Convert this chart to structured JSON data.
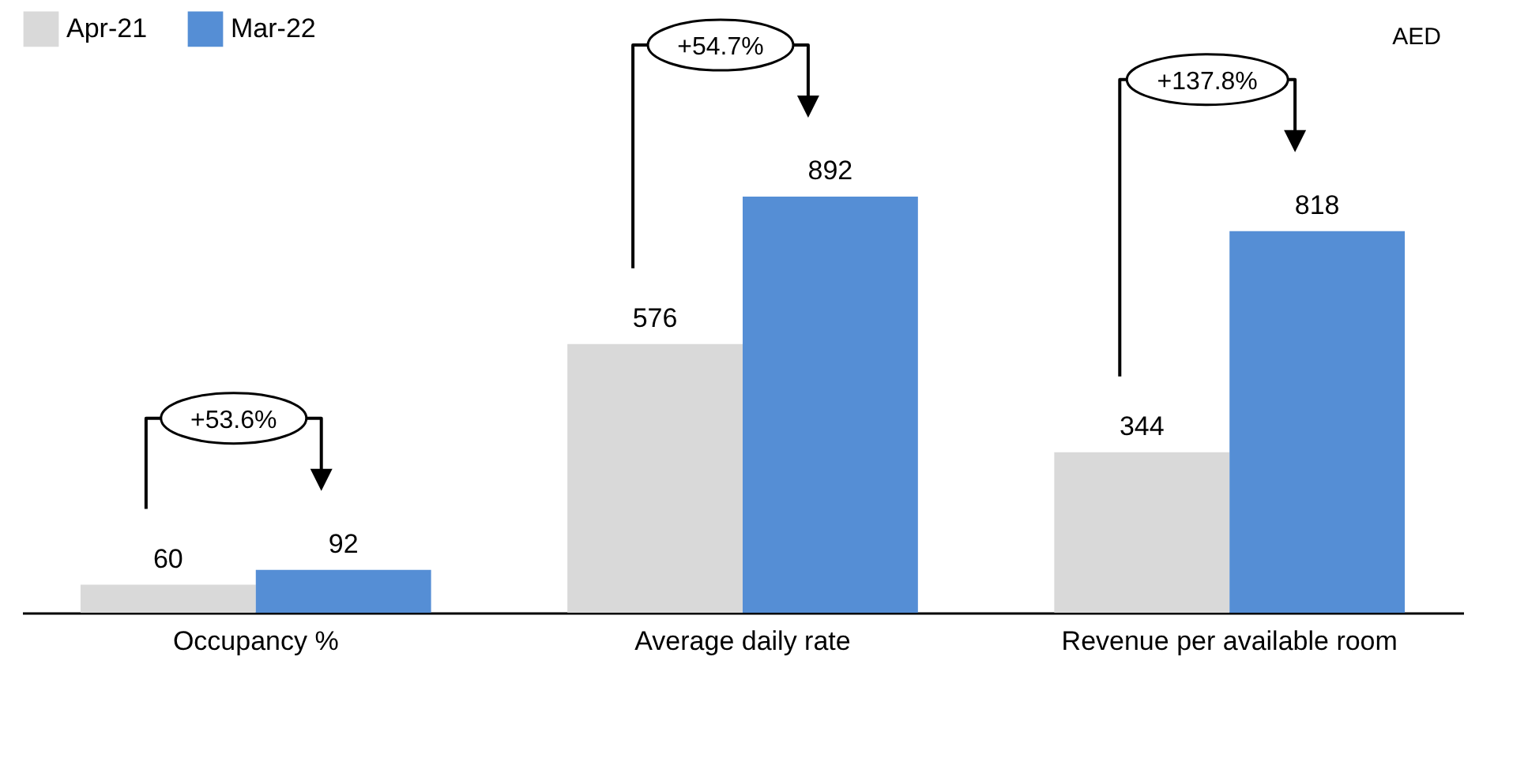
{
  "chart_data": {
    "type": "bar",
    "categories": [
      "Occupancy %",
      "Average daily rate",
      "Revenue per available room"
    ],
    "series": [
      {
        "name": "Apr-21",
        "color": "#d9d9d9",
        "values": [
          60,
          576,
          344
        ]
      },
      {
        "name": "Mar-22",
        "color": "#558ed5",
        "values": [
          92,
          892,
          818
        ]
      }
    ],
    "data_labels": true,
    "legend": "top left",
    "grid": false,
    "annotations": [
      "+53.6%",
      "+54.7%",
      "+137.8%",
      "AED"
    ]
  }
}
